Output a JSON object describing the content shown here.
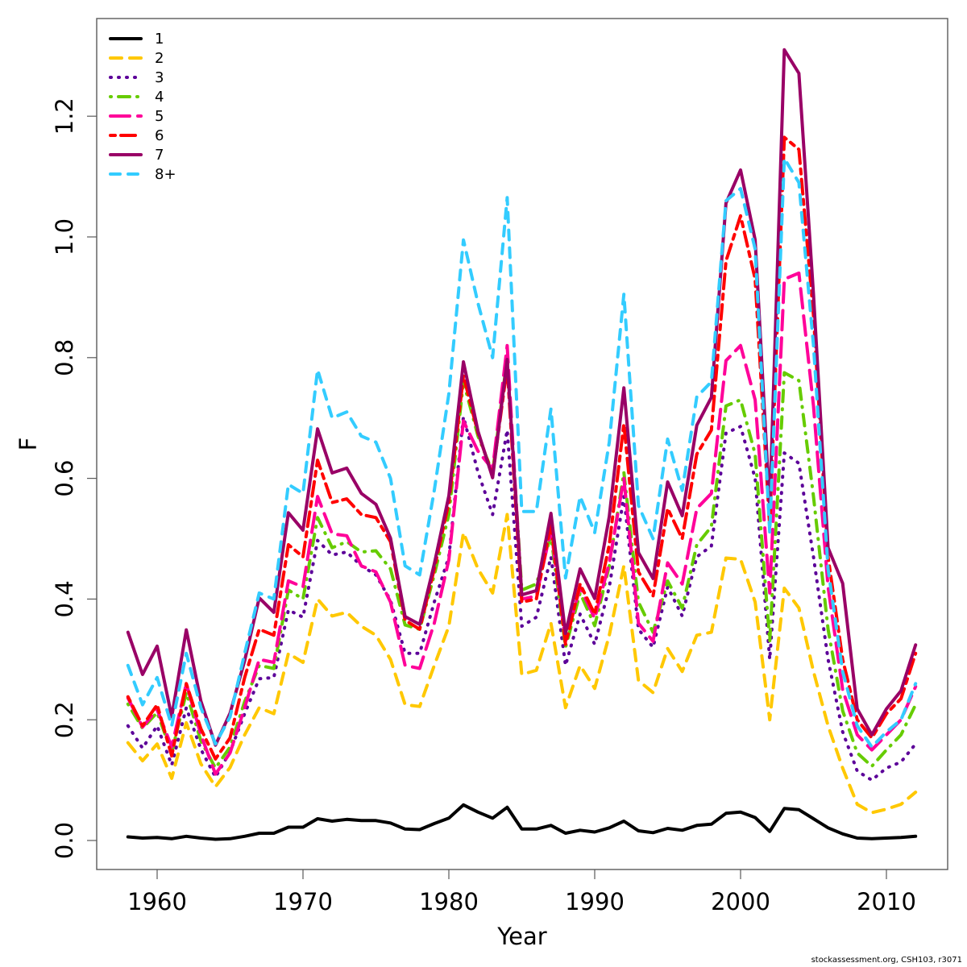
{
  "chart_data": {
    "type": "line",
    "title": "",
    "xlabel": "Year",
    "ylabel": "F",
    "xlim": [
      1955.6,
      2014.4
    ],
    "ylim": [
      -0.05,
      1.36
    ],
    "x_ticks": [
      1960,
      1970,
      1980,
      1990,
      2000,
      2010
    ],
    "y_ticks": [
      "0.0",
      "0.2",
      "0.4",
      "0.6",
      "0.8",
      "1.0",
      "1.2"
    ],
    "grid": false,
    "legend_position": "top-left",
    "x": [
      1958,
      1959,
      1960,
      1961,
      1962,
      1963,
      1964,
      1965,
      1966,
      1967,
      1968,
      1969,
      1970,
      1971,
      1972,
      1973,
      1974,
      1975,
      1976,
      1977,
      1978,
      1979,
      1980,
      1981,
      1982,
      1983,
      1984,
      1985,
      1986,
      1987,
      1988,
      1989,
      1990,
      1991,
      1992,
      1993,
      1994,
      1995,
      1996,
      1997,
      1998,
      1999,
      2000,
      2001,
      2002,
      2003,
      2004,
      2005,
      2006,
      2007,
      2008,
      2009,
      2010,
      2011,
      2012
    ],
    "series": [
      {
        "name": "1",
        "color": "#000000",
        "dash": "solid",
        "values": [
          0.006,
          0.004,
          0.005,
          0.003,
          0.007,
          0.004,
          0.002,
          0.003,
          0.007,
          0.012,
          0.012,
          0.022,
          0.022,
          0.036,
          0.032,
          0.035,
          0.033,
          0.033,
          0.029,
          0.019,
          0.018,
          0.028,
          0.037,
          0.059,
          0.047,
          0.037,
          0.055,
          0.019,
          0.019,
          0.025,
          0.012,
          0.017,
          0.014,
          0.021,
          0.032,
          0.016,
          0.013,
          0.02,
          0.017,
          0.025,
          0.027,
          0.045,
          0.047,
          0.038,
          0.015,
          0.053,
          0.051,
          0.036,
          0.021,
          0.011,
          0.004,
          0.003,
          0.004,
          0.005,
          0.007
        ]
      },
      {
        "name": "2",
        "color": "#FFC800",
        "dash": "dashed",
        "values": [
          0.162,
          0.132,
          0.16,
          0.103,
          0.195,
          0.127,
          0.089,
          0.121,
          0.175,
          0.22,
          0.21,
          0.31,
          0.295,
          0.4,
          0.372,
          0.378,
          0.355,
          0.34,
          0.3,
          0.225,
          0.222,
          0.29,
          0.355,
          0.51,
          0.45,
          0.41,
          0.54,
          0.275,
          0.282,
          0.36,
          0.22,
          0.29,
          0.252,
          0.34,
          0.455,
          0.265,
          0.245,
          0.318,
          0.28,
          0.34,
          0.345,
          0.468,
          0.466,
          0.395,
          0.2,
          0.418,
          0.385,
          0.28,
          0.19,
          0.12,
          0.06,
          0.046,
          0.052,
          0.06,
          0.08
        ]
      },
      {
        "name": "3",
        "color": "#5C0099",
        "dash": "dotted",
        "values": [
          0.19,
          0.153,
          0.19,
          0.125,
          0.22,
          0.151,
          0.105,
          0.147,
          0.21,
          0.268,
          0.27,
          0.382,
          0.37,
          0.497,
          0.473,
          0.478,
          0.455,
          0.44,
          0.398,
          0.31,
          0.31,
          0.395,
          0.47,
          0.702,
          0.61,
          0.54,
          0.68,
          0.355,
          0.37,
          0.47,
          0.29,
          0.375,
          0.325,
          0.42,
          0.57,
          0.35,
          0.32,
          0.42,
          0.372,
          0.47,
          0.488,
          0.675,
          0.686,
          0.6,
          0.3,
          0.642,
          0.625,
          0.47,
          0.3,
          0.18,
          0.115,
          0.1,
          0.12,
          0.13,
          0.16
        ]
      },
      {
        "name": "4",
        "color": "#66CC00",
        "dash": "dotdash",
        "values": [
          0.226,
          0.186,
          0.212,
          0.146,
          0.245,
          0.165,
          0.12,
          0.155,
          0.23,
          0.29,
          0.285,
          0.415,
          0.4,
          0.535,
          0.485,
          0.495,
          0.478,
          0.48,
          0.45,
          0.357,
          0.35,
          0.44,
          0.54,
          0.76,
          0.67,
          0.61,
          0.8,
          0.415,
          0.425,
          0.505,
          0.32,
          0.41,
          0.356,
          0.455,
          0.61,
          0.395,
          0.345,
          0.43,
          0.385,
          0.49,
          0.52,
          0.72,
          0.73,
          0.64,
          0.33,
          0.775,
          0.762,
          0.57,
          0.35,
          0.215,
          0.145,
          0.123,
          0.15,
          0.175,
          0.225
        ]
      },
      {
        "name": "5",
        "color": "#FF0099",
        "dash": "longdash",
        "values": [
          0.236,
          0.188,
          0.217,
          0.155,
          0.26,
          0.175,
          0.11,
          0.145,
          0.22,
          0.3,
          0.295,
          0.43,
          0.42,
          0.57,
          0.508,
          0.505,
          0.455,
          0.445,
          0.395,
          0.29,
          0.285,
          0.36,
          0.465,
          0.695,
          0.645,
          0.615,
          0.82,
          0.4,
          0.405,
          0.515,
          0.33,
          0.42,
          0.368,
          0.46,
          0.6,
          0.36,
          0.33,
          0.46,
          0.425,
          0.55,
          0.575,
          0.795,
          0.82,
          0.73,
          0.41,
          0.93,
          0.94,
          0.72,
          0.42,
          0.25,
          0.175,
          0.15,
          0.175,
          0.2,
          0.255
        ]
      },
      {
        "name": "6",
        "color": "#FF0000",
        "dash": "twodash",
        "values": [
          0.238,
          0.19,
          0.225,
          0.14,
          0.26,
          0.185,
          0.135,
          0.17,
          0.27,
          0.35,
          0.34,
          0.49,
          0.47,
          0.63,
          0.56,
          0.566,
          0.54,
          0.535,
          0.495,
          0.365,
          0.35,
          0.45,
          0.56,
          0.77,
          0.675,
          0.605,
          0.785,
          0.395,
          0.4,
          0.525,
          0.325,
          0.425,
          0.375,
          0.49,
          0.69,
          0.445,
          0.405,
          0.55,
          0.5,
          0.64,
          0.68,
          0.96,
          1.035,
          0.93,
          0.52,
          1.165,
          1.145,
          0.87,
          0.47,
          0.3,
          0.2,
          0.17,
          0.21,
          0.235,
          0.31
        ]
      },
      {
        "name": "7",
        "color": "#990066",
        "dash": "solid",
        "values": [
          0.345,
          0.275,
          0.322,
          0.205,
          0.349,
          0.231,
          0.158,
          0.211,
          0.298,
          0.402,
          0.378,
          0.543,
          0.514,
          0.682,
          0.609,
          0.617,
          0.575,
          0.557,
          0.501,
          0.371,
          0.358,
          0.458,
          0.571,
          0.793,
          0.678,
          0.601,
          0.797,
          0.407,
          0.414,
          0.542,
          0.343,
          0.45,
          0.401,
          0.537,
          0.75,
          0.477,
          0.434,
          0.594,
          0.538,
          0.688,
          0.734,
          1.056,
          1.111,
          0.995,
          0.551,
          1.31,
          1.271,
          0.905,
          0.485,
          0.426,
          0.218,
          0.175,
          0.218,
          0.248,
          0.324
        ]
      },
      {
        "name": "8+",
        "color": "#33CCFF",
        "dash": "shortdash",
        "values": [
          0.29,
          0.225,
          0.27,
          0.19,
          0.31,
          0.22,
          0.16,
          0.205,
          0.31,
          0.41,
          0.4,
          0.59,
          0.575,
          0.78,
          0.7,
          0.71,
          0.67,
          0.66,
          0.6,
          0.455,
          0.44,
          0.58,
          0.74,
          0.995,
          0.89,
          0.8,
          1.065,
          0.545,
          0.545,
          0.715,
          0.435,
          0.57,
          0.51,
          0.66,
          0.905,
          0.555,
          0.5,
          0.665,
          0.58,
          0.735,
          0.76,
          1.06,
          1.08,
          0.98,
          0.51,
          1.13,
          1.09,
          0.82,
          0.45,
          0.28,
          0.19,
          0.155,
          0.18,
          0.2,
          0.26
        ]
      }
    ]
  },
  "footer": {
    "credit": "stockassessment.org, CSH103, r3071"
  }
}
